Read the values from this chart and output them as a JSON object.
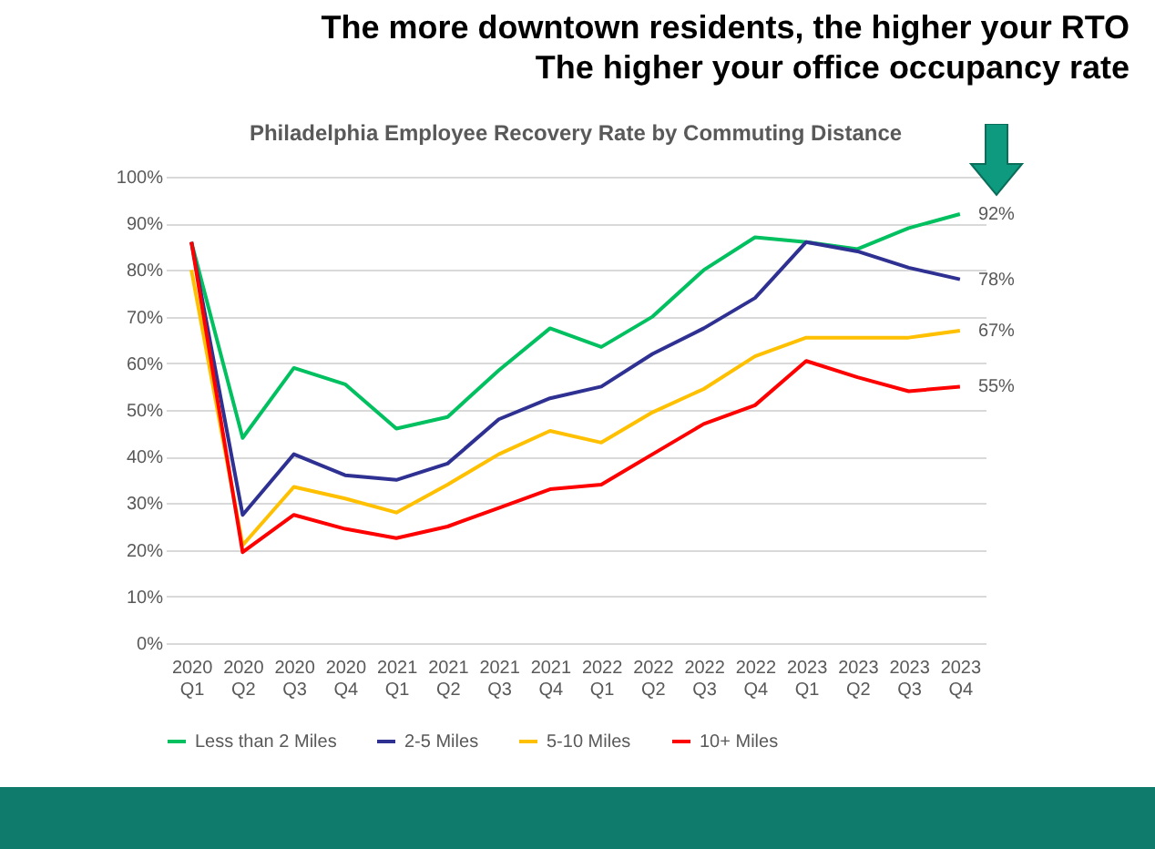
{
  "chart_data": {
    "type": "line",
    "title": "Philadelphia Employee Recovery Rate by Commuting Distance",
    "annotations": [
      "The more downtown residents, the higher your RTO",
      "The higher your office occupancy rate"
    ],
    "categories": [
      "2020 Q1",
      "2020 Q2",
      "2020 Q3",
      "2020 Q4",
      "2021 Q1",
      "2021 Q2",
      "2021 Q3",
      "2021 Q4",
      "2022 Q1",
      "2022 Q2",
      "2022 Q3",
      "2022 Q4",
      "2023 Q1",
      "2023 Q2",
      "2023 Q3",
      "2023 Q4"
    ],
    "series": [
      {
        "name": "Less than 2 Miles",
        "color": "#00c060",
        "values": [
          86,
          44,
          59,
          55.5,
          46,
          48.5,
          58.5,
          67.5,
          63.5,
          70,
          80,
          87,
          86,
          84.5,
          89,
          92
        ],
        "value_labels": [
          null,
          null,
          null,
          null,
          null,
          null,
          null,
          null,
          null,
          null,
          null,
          null,
          null,
          null,
          null,
          "92%"
        ]
      },
      {
        "name": "2-5 Miles",
        "color": "#2e3192",
        "values": [
          86,
          27.5,
          40.5,
          36,
          35,
          38.5,
          48,
          52.5,
          55,
          62,
          67.5,
          74,
          86,
          84,
          80.5,
          78
        ],
        "value_labels": [
          null,
          null,
          null,
          null,
          null,
          null,
          null,
          null,
          null,
          null,
          null,
          null,
          null,
          null,
          null,
          "78%"
        ]
      },
      {
        "name": "5-10 Miles",
        "color": "#ffc000",
        "values": [
          80,
          21,
          33.5,
          31,
          28,
          34,
          40.5,
          45.5,
          43,
          49.5,
          54.5,
          61.5,
          65.5,
          65.5,
          65.5,
          67
        ],
        "value_labels": [
          null,
          null,
          null,
          null,
          null,
          null,
          null,
          null,
          null,
          null,
          null,
          null,
          null,
          null,
          null,
          "67%"
        ]
      },
      {
        "name": "10+ Miles",
        "color": "#ff0000",
        "values": [
          86,
          19.5,
          27.5,
          24.5,
          22.5,
          25,
          29,
          33,
          34,
          40.5,
          47,
          51,
          60.5,
          57,
          54,
          55
        ],
        "value_labels": [
          null,
          null,
          null,
          null,
          null,
          null,
          null,
          null,
          null,
          null,
          null,
          null,
          null,
          null,
          null,
          "55%"
        ]
      }
    ],
    "ylim": [
      0,
      100
    ],
    "yticks": [
      {
        "value": 0,
        "label": "0%"
      },
      {
        "value": 10,
        "label": "10%"
      },
      {
        "value": 20,
        "label": "20%"
      },
      {
        "value": 30,
        "label": "30%"
      },
      {
        "value": 40,
        "label": "40%"
      },
      {
        "value": 50,
        "label": "50%"
      },
      {
        "value": 60,
        "label": "60%"
      },
      {
        "value": 70,
        "label": "70%"
      },
      {
        "value": 80,
        "label": "80%"
      },
      {
        "value": 90,
        "label": "90%"
      },
      {
        "value": 100,
        "label": "100%"
      }
    ],
    "grid": "y",
    "legend": "bottom",
    "marker": "none",
    "line_style": "solid"
  }
}
